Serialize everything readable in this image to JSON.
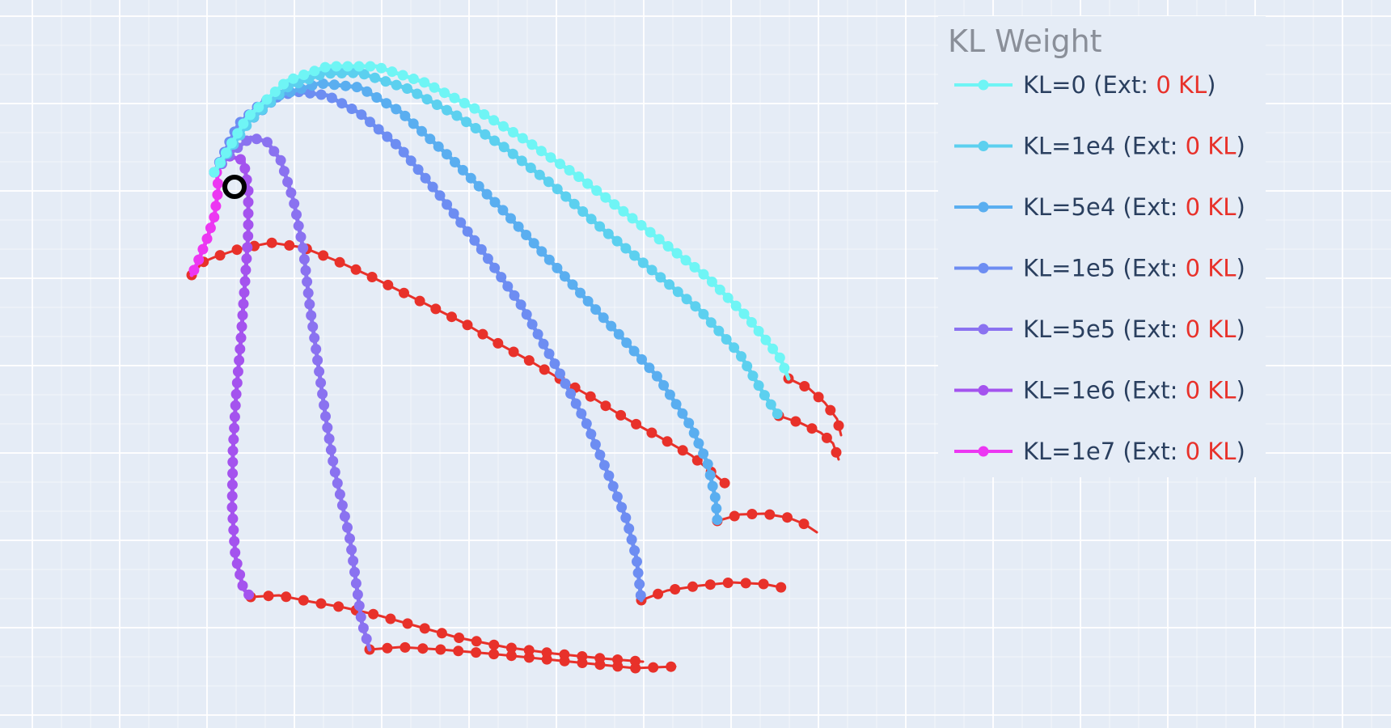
{
  "chart_data": {
    "type": "line",
    "legend": {
      "title": "KL Weight",
      "placement": "top-right",
      "entries": [
        {
          "prefix": "KL=0 (Ext: ",
          "highlight": "0 KL",
          "suffix": ")"
        },
        {
          "prefix": "KL=1e4 (Ext: ",
          "highlight": "0 KL",
          "suffix": ")"
        },
        {
          "prefix": "KL=5e4 (Ext: ",
          "highlight": "0 KL",
          "suffix": ")"
        },
        {
          "prefix": "KL=1e5 (Ext: ",
          "highlight": "0 KL",
          "suffix": ")"
        },
        {
          "prefix": "KL=5e5 (Ext: ",
          "highlight": "0 KL",
          "suffix": ")"
        },
        {
          "prefix": "KL=1e6 (Ext: ",
          "highlight": "0 KL",
          "suffix": ")"
        },
        {
          "prefix": "KL=1e7 (Ext: ",
          "highlight": "0 KL",
          "suffix": ")"
        }
      ]
    },
    "grid": true,
    "axes_visible": false,
    "start_marker_color": "#000000",
    "extension_color": "#e8312a",
    "highlight_color": "#e8312a",
    "series": [
      {
        "color": "#6ff5f5",
        "points": [
          [
            240,
            195
          ],
          [
            280,
            128
          ],
          [
            330,
            82
          ],
          [
            380,
            64
          ],
          [
            440,
            64
          ],
          [
            500,
            84
          ],
          [
            560,
            115
          ],
          [
            620,
            152
          ],
          [
            690,
            200
          ],
          [
            770,
            262
          ],
          [
            850,
            325
          ],
          [
            900,
            375
          ],
          [
            940,
            425
          ],
          [
            950,
            450
          ]
        ],
        "extension": [
          [
            950,
            450
          ],
          [
            975,
            462
          ],
          [
            995,
            480
          ],
          [
            1010,
            500
          ],
          [
            1015,
            520
          ]
        ]
      },
      {
        "color": "#5cd0ef",
        "points": [
          [
            240,
            195
          ],
          [
            285,
            130
          ],
          [
            330,
            90
          ],
          [
            375,
            73
          ],
          [
            420,
            72
          ],
          [
            480,
            92
          ],
          [
            540,
            125
          ],
          [
            600,
            165
          ],
          [
            660,
            212
          ],
          [
            720,
            265
          ],
          [
            780,
            315
          ],
          [
            840,
            365
          ],
          [
            890,
            420
          ],
          [
            920,
            470
          ],
          [
            938,
            496
          ]
        ],
        "extension": [
          [
            938,
            496
          ],
          [
            965,
            505
          ],
          [
            990,
            517
          ],
          [
            1005,
            530
          ],
          [
            1012,
            550
          ]
        ]
      },
      {
        "color": "#5aaef0",
        "points": [
          [
            240,
            195
          ],
          [
            280,
            135
          ],
          [
            320,
            100
          ],
          [
            370,
            85
          ],
          [
            420,
            90
          ],
          [
            470,
            120
          ],
          [
            530,
            175
          ],
          [
            600,
            245
          ],
          [
            670,
            320
          ],
          [
            740,
            395
          ],
          [
            790,
            450
          ],
          [
            830,
            510
          ],
          [
            850,
            555
          ],
          [
            860,
            600
          ],
          [
            862,
            626
          ]
        ],
        "extension": [
          [
            862,
            626
          ],
          [
            890,
            618
          ],
          [
            920,
            617
          ],
          [
            950,
            622
          ],
          [
            970,
            630
          ],
          [
            985,
            640
          ]
        ]
      },
      {
        "color": "#6d8df2",
        "points": [
          [
            240,
            195
          ],
          [
            270,
            135
          ],
          [
            300,
            108
          ],
          [
            340,
            95
          ],
          [
            380,
            100
          ],
          [
            420,
            122
          ],
          [
            470,
            165
          ],
          [
            520,
            225
          ],
          [
            570,
            290
          ],
          [
            620,
            360
          ],
          [
            660,
            430
          ],
          [
            700,
            505
          ],
          [
            730,
            575
          ],
          [
            750,
            625
          ],
          [
            762,
            672
          ],
          [
            768,
            724
          ]
        ],
        "extension": [
          [
            768,
            724
          ],
          [
            800,
            712
          ],
          [
            840,
            706
          ],
          [
            880,
            702
          ],
          [
            920,
            704
          ],
          [
            945,
            709
          ]
        ]
      },
      {
        "color": "#8a72f0",
        "points": [
          [
            240,
            195
          ],
          [
            262,
            170
          ],
          [
            285,
            152
          ],
          [
            305,
            157
          ],
          [
            322,
            180
          ],
          [
            338,
            230
          ],
          [
            350,
            290
          ],
          [
            358,
            360
          ],
          [
            368,
            430
          ],
          [
            378,
            500
          ],
          [
            388,
            560
          ],
          [
            398,
            605
          ],
          [
            408,
            650
          ],
          [
            415,
            700
          ],
          [
            422,
            750
          ],
          [
            432,
            785
          ]
        ],
        "extension": [
          [
            432,
            785
          ],
          [
            470,
            782
          ],
          [
            520,
            785
          ],
          [
            580,
            790
          ],
          [
            640,
            796
          ],
          [
            700,
            802
          ],
          [
            760,
            808
          ],
          [
            810,
            806
          ]
        ]
      },
      {
        "color": "#a453ee",
        "points": [
          [
            240,
            195
          ],
          [
            258,
            175
          ],
          [
            276,
            180
          ],
          [
            282,
            215
          ],
          [
            282,
            270
          ],
          [
            278,
            330
          ],
          [
            273,
            400
          ],
          [
            267,
            470
          ],
          [
            263,
            540
          ],
          [
            262,
            610
          ],
          [
            266,
            670
          ],
          [
            276,
            710
          ],
          [
            285,
            720
          ]
        ],
        "extension": [
          [
            285,
            720
          ],
          [
            320,
            718
          ],
          [
            360,
            726
          ],
          [
            400,
            733
          ],
          [
            440,
            742
          ],
          [
            490,
            756
          ],
          [
            540,
            770
          ],
          [
            600,
            782
          ],
          [
            660,
            790
          ],
          [
            720,
            796
          ],
          [
            770,
            800
          ]
        ]
      },
      {
        "color": "#ec37f2",
        "points": [
          [
            243,
            195
          ],
          [
            245,
            215
          ],
          [
            240,
            250
          ],
          [
            230,
            280
          ],
          [
            220,
            305
          ],
          [
            212,
            322
          ]
        ],
        "extension": [
          [
            212,
            322
          ],
          [
            226,
            306
          ],
          [
            240,
            300
          ],
          [
            270,
            290
          ],
          [
            310,
            282
          ],
          [
            350,
            288
          ],
          [
            390,
            304
          ],
          [
            430,
            322
          ],
          [
            470,
            342
          ],
          [
            510,
            362
          ],
          [
            550,
            382
          ],
          [
            590,
            406
          ],
          [
            630,
            428
          ],
          [
            670,
            452
          ],
          [
            710,
            475
          ],
          [
            750,
            500
          ],
          [
            790,
            522
          ],
          [
            830,
            545
          ],
          [
            860,
            570
          ],
          [
            872,
            580
          ]
        ]
      }
    ]
  }
}
